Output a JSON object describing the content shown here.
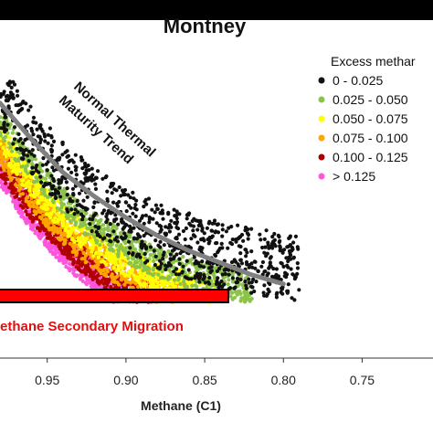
{
  "chart_data": {
    "type": "scatter",
    "title": "Montney",
    "xlabel": "Methane (C1)",
    "ylabel": "",
    "x_reversed": true,
    "xlim": [
      0.98,
      0.705
    ],
    "ylim": [
      0,
      1
    ],
    "x_ticks": [
      "0.95",
      "0.90",
      "0.85",
      "0.80",
      "0.75"
    ],
    "x_tick_values": [
      0.95,
      0.9,
      0.85,
      0.8,
      0.75
    ],
    "grid": false,
    "legend": {
      "title": "Excess methar",
      "placement": "top-right",
      "entries": [
        {
          "label": "0 - 0.025",
          "color": "#111111"
        },
        {
          "label": "0.025 - 0.050",
          "color": "#8bc34a"
        },
        {
          "label": "0.050 - 0.075",
          "color": "#ffff00"
        },
        {
          "label": "0.075 - 0.100",
          "color": "#ffa500"
        },
        {
          "label": "0.100 - 0.125",
          "color": "#b00000"
        },
        {
          "label": "> 0.125",
          "color": "#ff55dd"
        }
      ]
    },
    "series": [
      {
        "name": "0 - 0.025",
        "color": "#111111",
        "x_range": [
          0.98,
          0.79
        ],
        "band_offset": 0.0
      },
      {
        "name": "0.025 - 0.050",
        "color": "#8bc34a",
        "x_range": [
          0.98,
          0.82
        ],
        "band_offset": 0.06
      },
      {
        "name": "0.050 - 0.075",
        "color": "#ffff00",
        "x_range": [
          0.98,
          0.84
        ],
        "band_offset": 0.11
      },
      {
        "name": "0.075 - 0.100",
        "color": "#ffa500",
        "x_range": [
          0.98,
          0.86
        ],
        "band_offset": 0.15
      },
      {
        "name": "0.100 - 0.125",
        "color": "#b00000",
        "x_range": [
          0.98,
          0.88
        ],
        "band_offset": 0.19
      },
      {
        "name": "> 0.125",
        "color": "#ff55dd",
        "x_range": [
          0.98,
          0.9
        ],
        "band_offset": 0.22
      }
    ],
    "trend_line": {
      "label": "Normal Thermal Maturity Trend",
      "color": "#808080",
      "x": [
        0.98,
        0.96,
        0.94,
        0.92,
        0.9,
        0.88,
        0.86,
        0.84,
        0.82,
        0.8
      ],
      "y": [
        0.84,
        0.72,
        0.61,
        0.53,
        0.46,
        0.4,
        0.35,
        0.31,
        0.27,
        0.24
      ]
    },
    "annotations": {
      "trend": [
        "Normal Thermal",
        "Maturity Trend"
      ],
      "migration": "ethane Secondary Migration"
    },
    "migration_bar": {
      "x_start": 0.98,
      "x_end": 0.835,
      "fill": "#ff0000",
      "edge": "#000000"
    }
  }
}
